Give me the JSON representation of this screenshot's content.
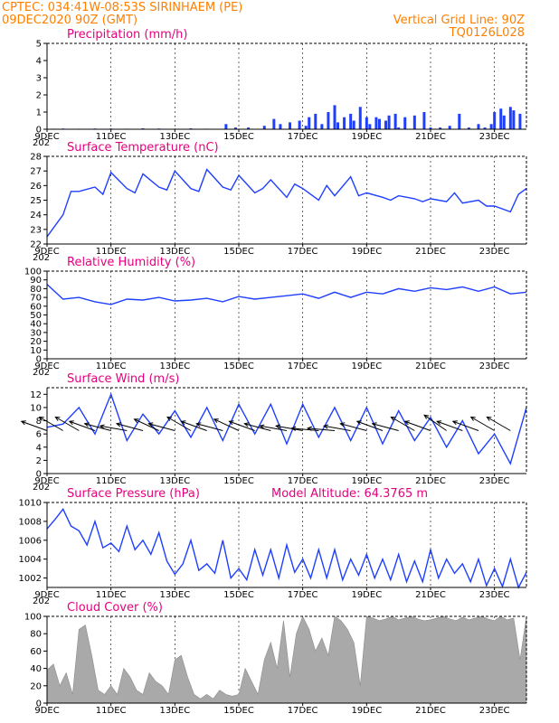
{
  "header": {
    "line1_left": "CPTEC:   034:41W-08:53S   SIRINHAEM (PE)",
    "line2_left": "09DEC2020 90Z (GMT)",
    "line1_right": "Vertical Grid Line: 90Z",
    "line2_right": "TQ0126L028"
  },
  "colors": {
    "header_text": "#ff7f00",
    "panel_title": "#e6007e",
    "series_line": "#1f3fff",
    "precip_bar": "#1f3fff",
    "cloud_fill": "#a9a9a9",
    "wind_arrow": "#000000"
  },
  "x_axis": {
    "tick_labels": [
      "9DEC",
      "11DEC",
      "13DEC",
      "15DEC",
      "17DEC",
      "19DEC",
      "21DEC",
      "23DEC"
    ],
    "tick_days": [
      9,
      11,
      13,
      15,
      17,
      19,
      21,
      23
    ],
    "sublabel": "202",
    "range_days": [
      9,
      24
    ]
  },
  "chart_data": [
    {
      "type": "bar",
      "title": "Precipitation (mm/h)",
      "ylim": [
        0,
        5
      ],
      "yticks": [
        0,
        1,
        2,
        3,
        4,
        5
      ],
      "x": [
        9.2,
        9.5,
        10.0,
        10.5,
        11.0,
        11.5,
        12.0,
        12.5,
        13.0,
        13.5,
        14.0,
        14.6,
        14.9,
        15.3,
        15.8,
        16.1,
        16.3,
        16.6,
        16.9,
        17.1,
        17.2,
        17.4,
        17.6,
        17.8,
        18.0,
        18.1,
        18.3,
        18.5,
        18.6,
        18.8,
        19.0,
        19.1,
        19.3,
        19.4,
        19.6,
        19.7,
        19.9,
        20.0,
        20.2,
        20.5,
        20.8,
        21.0,
        21.3,
        21.6,
        21.9,
        22.2,
        22.5,
        22.7,
        22.9,
        23.0,
        23.2,
        23.3,
        23.5,
        23.6,
        23.8
      ],
      "values": [
        0.03,
        0.04,
        0.03,
        0.04,
        0.04,
        0.03,
        0.05,
        0.04,
        0.03,
        0.05,
        0.03,
        0.3,
        0.1,
        0.1,
        0.2,
        0.6,
        0.3,
        0.4,
        0.5,
        0.2,
        0.7,
        0.9,
        0.3,
        1.0,
        1.4,
        0.4,
        0.7,
        0.9,
        0.5,
        1.3,
        0.7,
        0.3,
        0.7,
        0.6,
        0.5,
        0.8,
        0.9,
        0.1,
        0.7,
        0.8,
        1.0,
        0.1,
        0.1,
        0.2,
        0.9,
        0.1,
        0.3,
        0.1,
        0.3,
        1.0,
        1.2,
        0.8,
        1.3,
        1.1,
        0.9
      ]
    },
    {
      "type": "line",
      "title": "Surface Temperature (nC)",
      "ylim": [
        22,
        28
      ],
      "yticks": [
        22,
        23,
        24,
        25,
        26,
        27,
        28
      ],
      "x": [
        9.0,
        9.5,
        9.75,
        10.0,
        10.5,
        10.75,
        11.0,
        11.5,
        11.75,
        12.0,
        12.5,
        12.75,
        13.0,
        13.5,
        13.75,
        14.0,
        14.5,
        14.75,
        15.0,
        15.5,
        15.75,
        16.0,
        16.5,
        16.75,
        17.0,
        17.5,
        17.75,
        18.0,
        18.5,
        18.75,
        19.0,
        19.5,
        19.75,
        20.0,
        20.5,
        20.75,
        21.0,
        21.5,
        21.75,
        22.0,
        22.5,
        22.75,
        23.0,
        23.5,
        23.75,
        24.0
      ],
      "values": [
        22.5,
        24.0,
        25.6,
        25.6,
        25.9,
        25.4,
        26.9,
        25.8,
        25.5,
        26.8,
        25.9,
        25.7,
        27.0,
        25.8,
        25.6,
        27.1,
        25.9,
        25.7,
        26.7,
        25.5,
        25.8,
        26.4,
        25.2,
        26.1,
        25.8,
        25.0,
        26.0,
        25.3,
        26.6,
        25.3,
        25.5,
        25.2,
        25.0,
        25.3,
        25.1,
        24.9,
        25.1,
        24.9,
        25.5,
        24.8,
        25.0,
        24.6,
        24.6,
        24.2,
        25.4,
        25.8
      ]
    },
    {
      "type": "line",
      "title": "Relative Humidity (%)",
      "ylim": [
        0,
        100
      ],
      "yticks": [
        0,
        10,
        20,
        30,
        40,
        50,
        60,
        70,
        80,
        90,
        100
      ],
      "x": [
        9.0,
        9.5,
        10.0,
        10.5,
        11.0,
        11.5,
        12.0,
        12.5,
        13.0,
        13.5,
        14.0,
        14.5,
        15.0,
        15.5,
        16.0,
        16.5,
        17.0,
        17.5,
        18.0,
        18.5,
        19.0,
        19.5,
        20.0,
        20.5,
        21.0,
        21.5,
        22.0,
        22.5,
        23.0,
        23.5,
        24.0
      ],
      "values": [
        85,
        68,
        70,
        65,
        62,
        68,
        67,
        70,
        66,
        67,
        69,
        65,
        71,
        68,
        70,
        72,
        74,
        69,
        76,
        70,
        76,
        74,
        80,
        77,
        81,
        79,
        82,
        77,
        82,
        74,
        76
      ]
    },
    {
      "type": "line",
      "title": "Surface Wind (m/s)",
      "ylim": [
        0,
        13
      ],
      "yticks": [
        0,
        2,
        4,
        6,
        8,
        10,
        12
      ],
      "x": [
        9.0,
        9.5,
        10.0,
        10.5,
        11.0,
        11.5,
        12.0,
        12.5,
        13.0,
        13.5,
        14.0,
        14.5,
        15.0,
        15.5,
        16.0,
        16.5,
        17.0,
        17.5,
        18.0,
        18.5,
        19.0,
        19.5,
        20.0,
        20.5,
        21.0,
        21.5,
        22.0,
        22.5,
        23.0,
        23.5,
        24.0
      ],
      "values": [
        7,
        7.5,
        10,
        6,
        12,
        5,
        9,
        6,
        9.5,
        5.5,
        10,
        5,
        10.5,
        6,
        10.5,
        4.5,
        10.5,
        5.5,
        10,
        5,
        10,
        4.5,
        9.5,
        5,
        8.5,
        4,
        8,
        3,
        6,
        1.5,
        10
      ],
      "arrows_x": [
        9.0,
        9.5,
        10.0,
        10.5,
        11.0,
        11.5,
        12.0,
        12.5,
        13.0,
        13.5,
        14.0,
        14.5,
        15.0,
        15.5,
        16.0,
        16.5,
        17.0,
        17.5,
        18.0,
        18.5,
        19.0,
        19.5,
        20.0,
        20.5,
        21.0,
        21.5,
        22.0,
        22.5,
        23.0,
        23.5
      ],
      "arrows_dir_deg": [
        -160,
        -150,
        -150,
        -160,
        -165,
        -170,
        -165,
        -155,
        -165,
        -150,
        -160,
        -165,
        -155,
        -160,
        -165,
        -170,
        -170,
        -175,
        -175,
        -170,
        -165,
        -160,
        -165,
        -150,
        -160,
        -145,
        -160,
        -160,
        -150,
        -150
      ]
    },
    {
      "type": "line",
      "title": "Surface Pressure (hPa)",
      "annotation": "Model Altitude: 64.3765 m",
      "ylim": [
        1001,
        1010
      ],
      "yticks": [
        1002,
        1004,
        1006,
        1008,
        1010
      ],
      "x": [
        9.0,
        9.25,
        9.5,
        9.75,
        10.0,
        10.25,
        10.5,
        10.75,
        11.0,
        11.25,
        11.5,
        11.75,
        12.0,
        12.25,
        12.5,
        12.75,
        13.0,
        13.25,
        13.5,
        13.75,
        14.0,
        14.25,
        14.5,
        14.75,
        15.0,
        15.25,
        15.5,
        15.75,
        16.0,
        16.25,
        16.5,
        16.75,
        17.0,
        17.25,
        17.5,
        17.75,
        18.0,
        18.25,
        18.5,
        18.75,
        19.0,
        19.25,
        19.5,
        19.75,
        20.0,
        20.25,
        20.5,
        20.75,
        21.0,
        21.25,
        21.5,
        21.75,
        22.0,
        22.25,
        22.5,
        22.75,
        23.0,
        23.25,
        23.5,
        23.75,
        24.0
      ],
      "values": [
        1007.2,
        1008.2,
        1009.3,
        1007.5,
        1007.0,
        1005.5,
        1008.0,
        1005.2,
        1005.7,
        1004.8,
        1007.5,
        1005.0,
        1006.0,
        1004.5,
        1006.8,
        1003.8,
        1002.4,
        1003.5,
        1006.0,
        1002.8,
        1003.5,
        1002.5,
        1006.0,
        1002.0,
        1003.0,
        1001.8,
        1005.0,
        1002.3,
        1005.0,
        1002.0,
        1005.5,
        1002.6,
        1004.0,
        1002.0,
        1005.0,
        1002.0,
        1005.0,
        1001.8,
        1004.0,
        1002.3,
        1004.5,
        1002.0,
        1004.0,
        1001.8,
        1004.5,
        1001.6,
        1003.8,
        1001.6,
        1005.0,
        1002.0,
        1004.0,
        1002.5,
        1003.5,
        1001.6,
        1004.0,
        1001.2,
        1003.0,
        1001.1,
        1004.0,
        1001.0,
        1002.6
      ]
    },
    {
      "type": "area",
      "title": "Cloud Cover (%)",
      "ylim": [
        0,
        100
      ],
      "yticks": [
        0,
        20,
        40,
        60,
        80,
        100
      ],
      "x": [
        9.0,
        9.2,
        9.4,
        9.6,
        9.8,
        10.0,
        10.2,
        10.4,
        10.6,
        10.8,
        11.0,
        11.2,
        11.4,
        11.6,
        11.8,
        12.0,
        12.2,
        12.4,
        12.6,
        12.8,
        13.0,
        13.2,
        13.4,
        13.6,
        13.8,
        14.0,
        14.2,
        14.4,
        14.6,
        14.8,
        15.0,
        15.2,
        15.4,
        15.6,
        15.8,
        16.0,
        16.2,
        16.4,
        16.6,
        16.8,
        17.0,
        17.2,
        17.4,
        17.6,
        17.8,
        18.0,
        18.2,
        18.4,
        18.6,
        18.8,
        19.0,
        19.2,
        19.4,
        19.6,
        19.8,
        20.0,
        20.2,
        20.4,
        20.6,
        20.8,
        21.0,
        21.2,
        21.4,
        21.6,
        21.8,
        22.0,
        22.2,
        22.4,
        22.6,
        22.8,
        23.0,
        23.2,
        23.4,
        23.6,
        23.8,
        24.0
      ],
      "values": [
        38,
        45,
        20,
        35,
        10,
        85,
        90,
        55,
        15,
        10,
        20,
        10,
        40,
        30,
        15,
        10,
        35,
        25,
        20,
        10,
        50,
        55,
        30,
        10,
        5,
        10,
        5,
        15,
        10,
        8,
        10,
        40,
        25,
        10,
        50,
        70,
        40,
        95,
        30,
        80,
        100,
        85,
        60,
        75,
        55,
        100,
        95,
        85,
        70,
        20,
        100,
        98,
        95,
        97,
        100,
        96,
        98,
        100,
        97,
        95,
        96,
        98,
        100,
        97,
        95,
        99,
        96,
        98,
        100,
        97,
        95,
        100,
        96,
        98,
        50,
        100
      ]
    }
  ]
}
